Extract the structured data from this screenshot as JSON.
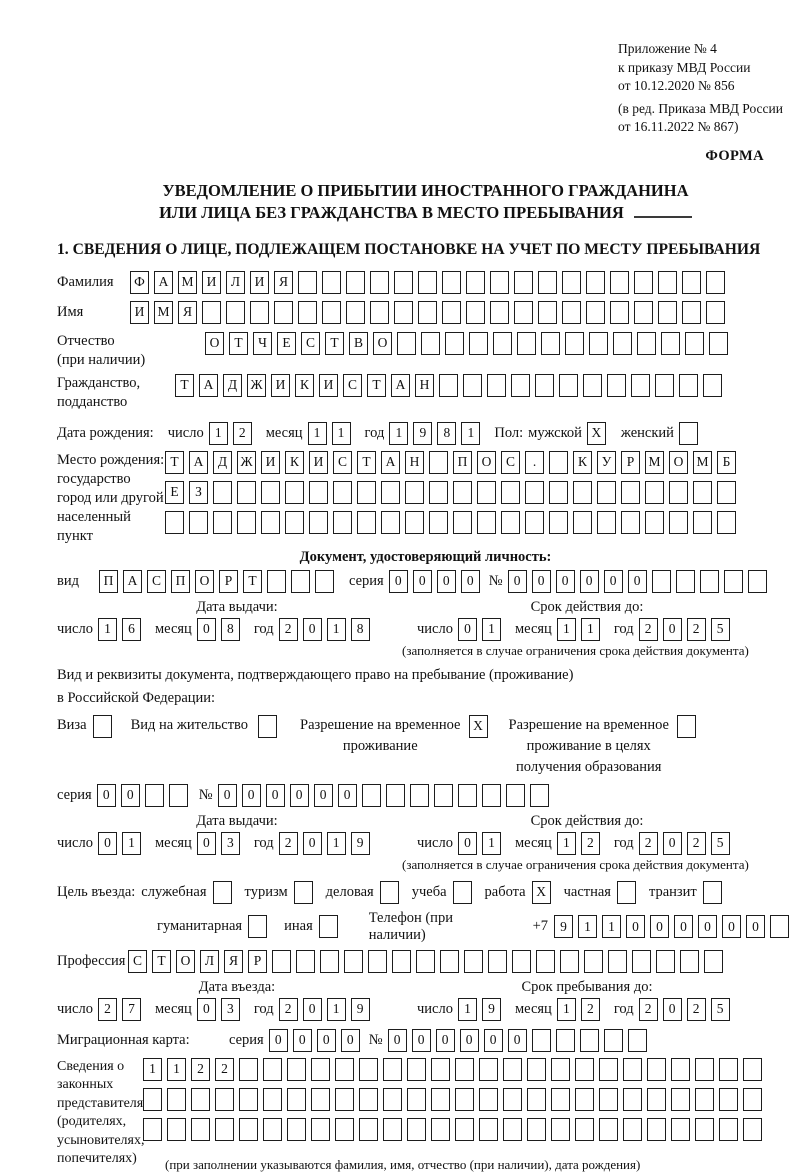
{
  "header": {
    "annex": [
      "Приложение № 4",
      "к приказу МВД России",
      "от 10.12.2020 № 856"
    ],
    "annex_ed": [
      "(в ред. Приказа МВД России",
      "от 16.11.2022 № 867)"
    ],
    "forma": "ФОРМА"
  },
  "title": {
    "line1": "УВЕДОМЛЕНИЕ О ПРИБЫТИИ ИНОСТРАННОГО ГРАЖДАНИНА",
    "line2": "ИЛИ ЛИЦА БЕЗ ГРАЖДАНСТВА В МЕСТО ПРЕБЫВАНИЯ"
  },
  "section1": {
    "heading": "1. СВЕДЕНИЯ О ЛИЦЕ, ПОДЛЕЖАЩЕМ ПОСТАНОВКЕ НА УЧЕТ ПО МЕСТУ ПРЕБЫВАНИЯ"
  },
  "labels": {
    "surname": "Фамилия",
    "name": "Имя",
    "patronymic": [
      "Отчество",
      "(при наличии)"
    ],
    "citizenship": [
      "Гражданство,",
      "подданство"
    ],
    "birth_date": "Дата рождения:",
    "day": "число",
    "month": "месяц",
    "year": "год",
    "sex": "Пол:",
    "male": "мужской",
    "female": "женский",
    "birth_place": [
      "Место рождения:",
      "государство",
      "город или другой",
      "населенный пункт"
    ],
    "id_doc_heading": "Документ, удостоверяющий личность:",
    "kind": "вид",
    "series": "серия",
    "number": "№",
    "issue_date": "Дата выдачи:",
    "valid_until": "Срок действия до:",
    "valid_note": "(заполняется в случае ограничения срока действия документа)",
    "right_doc_line1": "Вид и реквизиты документа, подтверждающего право на пребывание (проживание)",
    "right_doc_line2": "в Российской Федерации:",
    "visa": "Виза",
    "residence_permit": "Вид на жительство",
    "temp_residence": [
      "Разрешение на временное",
      "проживание"
    ],
    "temp_residence_edu": [
      "Разрешение на временное",
      "проживание в целях",
      "получения образования"
    ],
    "entry_purpose": "Цель въезда:",
    "purposes": [
      "служебная",
      "туризм",
      "деловая",
      "учеба",
      "работа",
      "частная",
      "транзит"
    ],
    "purposes2": [
      "гуманитарная",
      "иная"
    ],
    "phone": "Телефон (при наличии)",
    "phone_prefix": "+7",
    "profession": "Профессия",
    "entry_date": "Дата въезда:",
    "stay_until": "Срок пребывания до:",
    "migration_card": "Миграционная карта:",
    "representatives": [
      "Сведения о",
      "законных",
      "представителях",
      "(родителях,",
      "усыновителях,",
      "попечителях)"
    ],
    "representatives_note": "(при заполнении указываются фамилия, имя, отчество (при наличии), дата рождения)"
  },
  "grids": {
    "person": {
      "surname": {
        "n": 25,
        "v": "ФАМИЛИЯ"
      },
      "name": {
        "n": 25,
        "v": "ИМЯ"
      },
      "patronymic": {
        "n": 22,
        "v": "ОТЧЕСТВО"
      },
      "citizenship": {
        "n": 23,
        "v": "ТАДЖИКИСТАН"
      },
      "birth_place": [
        {
          "n": 24,
          "v": [
            "Т",
            "А",
            "Д",
            "Ж",
            "И",
            "К",
            "И",
            "С",
            "Т",
            "А",
            "Н",
            "",
            "П",
            "О",
            "С",
            ".",
            "",
            "К",
            "У",
            "Р",
            "М",
            "О",
            "М",
            "Б"
          ]
        },
        {
          "n": 24,
          "v": "ЕЗ"
        },
        {
          "n": 24,
          "v": ""
        }
      ]
    },
    "birth": {
      "day": {
        "n": 2,
        "v": "12"
      },
      "month": {
        "n": 2,
        "v": "11"
      },
      "year": {
        "n": 4,
        "v": "1981"
      }
    },
    "sex": {
      "male": {
        "n": 1,
        "v": "X"
      },
      "female": {
        "n": 1,
        "v": ""
      }
    },
    "id_doc": {
      "kind": {
        "n": 10,
        "v": "ПАСПОРТ"
      },
      "series": {
        "n": 4,
        "v": "0000"
      },
      "number": {
        "n": 11,
        "v": "000000"
      },
      "issue": {
        "day": {
          "n": 2,
          "v": "16"
        },
        "month": {
          "n": 2,
          "v": "08"
        },
        "year": {
          "n": 4,
          "v": "2018"
        }
      },
      "valid": {
        "day": {
          "n": 2,
          "v": "01"
        },
        "month": {
          "n": 2,
          "v": "11"
        },
        "year": {
          "n": 4,
          "v": "2025"
        }
      }
    },
    "stay_doc": {
      "visa": {
        "n": 1,
        "v": ""
      },
      "residence": {
        "n": 1,
        "v": ""
      },
      "temp": {
        "n": 1,
        "v": "X"
      },
      "temp_edu": {
        "n": 1,
        "v": ""
      },
      "series": {
        "n": 4,
        "v": "00"
      },
      "number": {
        "n": 14,
        "v": "000000"
      },
      "issue": {
        "day": {
          "n": 2,
          "v": "01"
        },
        "month": {
          "n": 2,
          "v": "03"
        },
        "year": {
          "n": 4,
          "v": "2019"
        }
      },
      "valid": {
        "day": {
          "n": 2,
          "v": "01"
        },
        "month": {
          "n": 2,
          "v": "12"
        },
        "year": {
          "n": 4,
          "v": "2025"
        }
      }
    },
    "purpose_checks": [
      {
        "n": 1,
        "v": ""
      },
      {
        "n": 1,
        "v": ""
      },
      {
        "n": 1,
        "v": ""
      },
      {
        "n": 1,
        "v": ""
      },
      {
        "n": 1,
        "v": "X"
      },
      {
        "n": 1,
        "v": ""
      },
      {
        "n": 1,
        "v": ""
      }
    ],
    "purpose2_checks": [
      {
        "n": 1,
        "v": ""
      },
      {
        "n": 1,
        "v": ""
      }
    ],
    "phone": {
      "n": 10,
      "v": "911000000"
    },
    "profession": {
      "n": 25,
      "v": "СТОЛЯР"
    },
    "entry": {
      "date": {
        "day": {
          "n": 2,
          "v": "27"
        },
        "month": {
          "n": 2,
          "v": "03"
        },
        "year": {
          "n": 4,
          "v": "2019"
        }
      },
      "until": {
        "day": {
          "n": 2,
          "v": "19"
        },
        "month": {
          "n": 2,
          "v": "12"
        },
        "year": {
          "n": 4,
          "v": "2025"
        }
      }
    },
    "migration": {
      "series": {
        "n": 4,
        "v": "0000"
      },
      "number": {
        "n": 11,
        "v": "000000"
      }
    },
    "representatives": [
      {
        "n": 26,
        "v": "1122"
      },
      {
        "n": 26,
        "v": ""
      },
      {
        "n": 26,
        "v": ""
      }
    ]
  }
}
